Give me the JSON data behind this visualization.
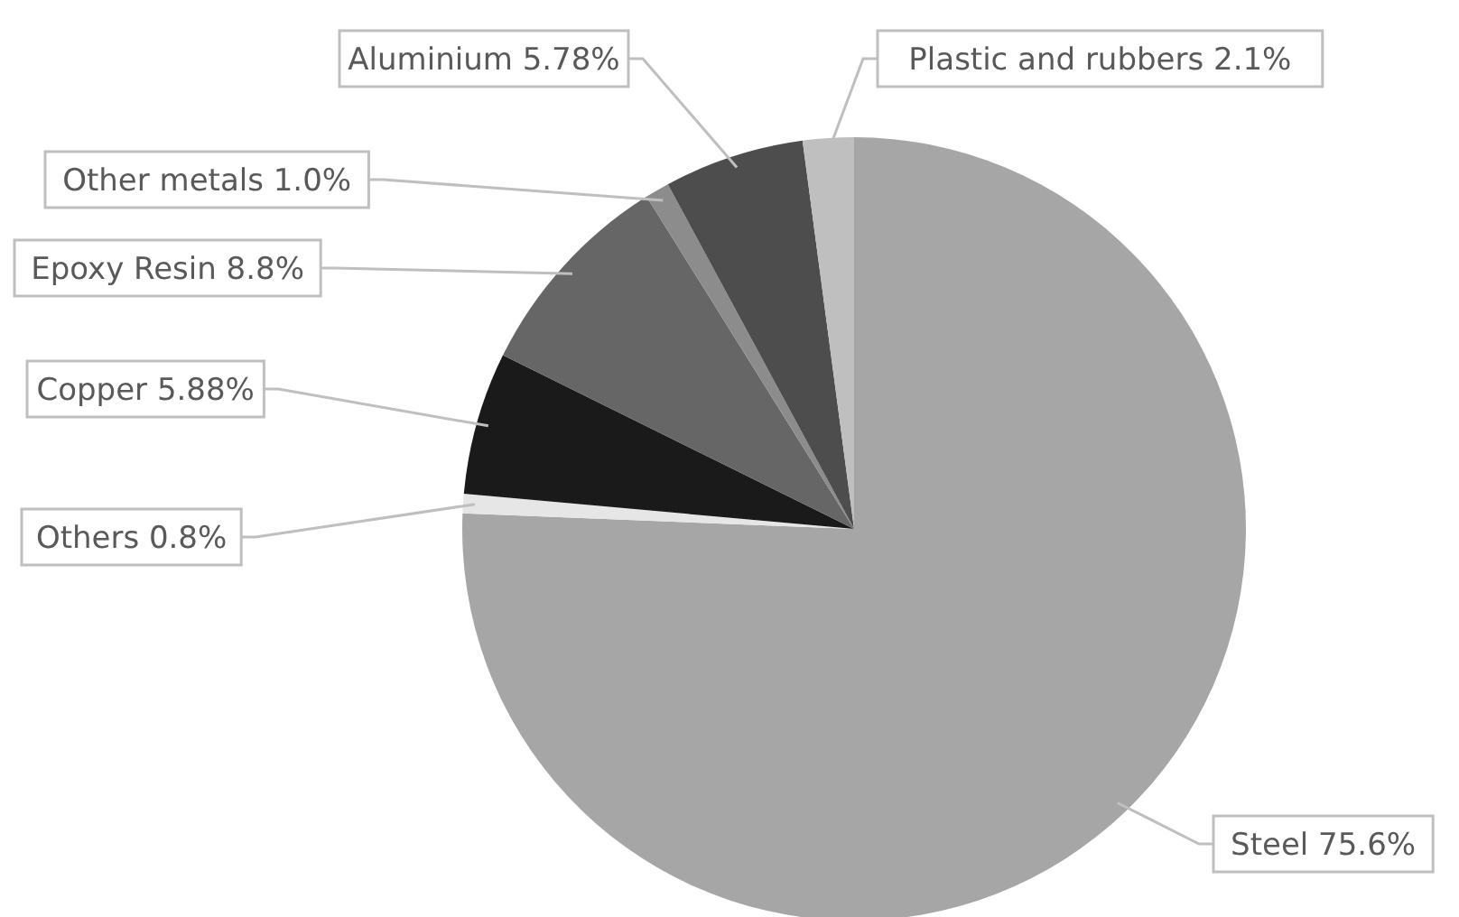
{
  "chart_data": {
    "type": "pie",
    "categories": [
      "Steel",
      "Others",
      "Copper",
      "Epoxy Resin",
      "Other metals",
      "Aluminium",
      "Plastic and rubbers"
    ],
    "values": [
      75.6,
      0.8,
      5.88,
      8.8,
      1.0,
      5.78,
      2.1
    ],
    "value_labels": [
      "75.6%",
      "0.8%",
      "5.88%",
      "8.8%",
      "1.0%",
      "5.78%",
      "2.1%"
    ],
    "colors": [
      "#a6a6a6",
      "#e6e6e6",
      "#1a1a1a",
      "#666666",
      "#8c8c8c",
      "#4d4d4d",
      "#bfbfbf"
    ]
  }
}
